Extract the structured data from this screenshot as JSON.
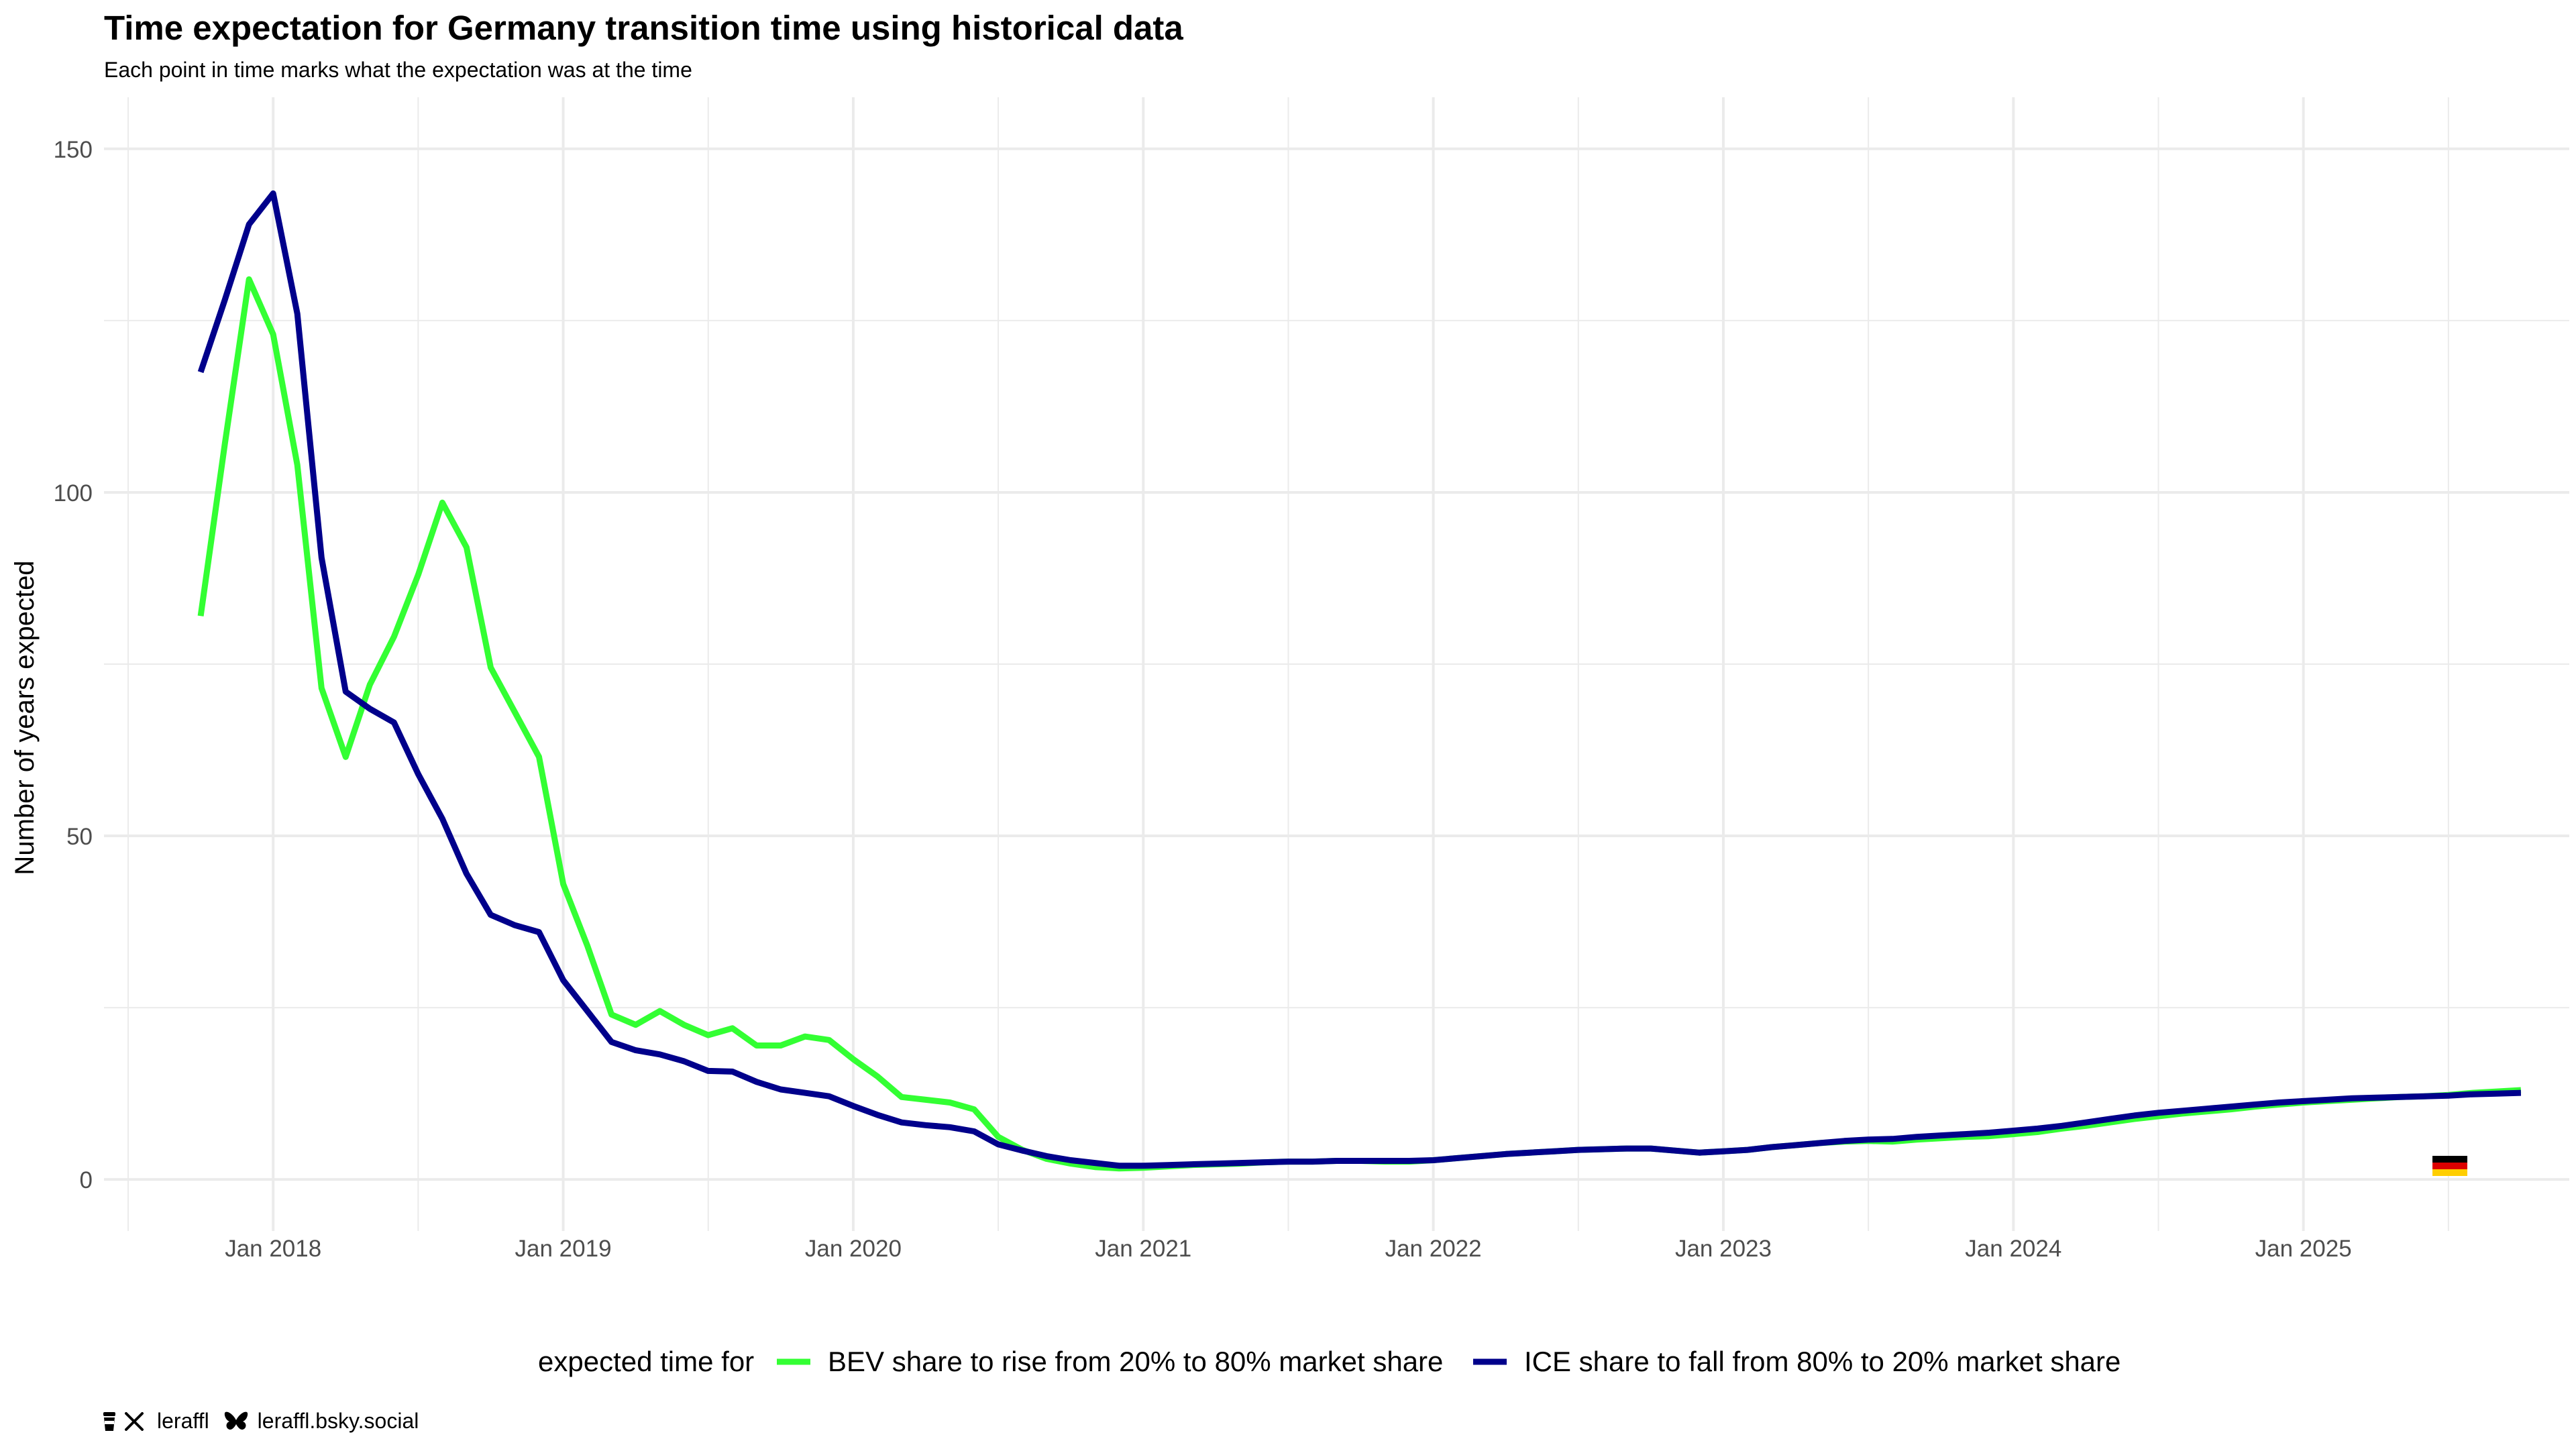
{
  "title": "Time expectation for Germany transition time using historical data",
  "subtitle": "Each point in time marks what the expectation was at the time",
  "credits": {
    "handle": "leraffl",
    "bluesky": "leraffl.bsky.social",
    "icons": [
      "coffee-cup-icon",
      "x-logo-icon",
      "butterfly-icon"
    ]
  },
  "chart_data": {
    "type": "line",
    "ylabel": "Number of years expected",
    "xlabel": "",
    "ylim": [
      -7.5,
      157.5
    ],
    "yticks": [
      0,
      50,
      100,
      150
    ],
    "xlim": [
      "2017-06-01",
      "2025-12-01"
    ],
    "xticks": [
      "Jan 2018",
      "Jan 2019",
      "Jan 2020",
      "Jan 2021",
      "Jan 2022",
      "Jan 2023",
      "Jan 2024",
      "Jan 2025"
    ],
    "grid": true,
    "legend_title": "expected time for",
    "legend_position": "bottom",
    "flag_icon": "germany-flag-icon",
    "x_start": "2017-10",
    "series": [
      {
        "name": "BEV share to rise from 20% to 80% market share",
        "color": "#33ff33",
        "values": [
          82,
          107,
          131,
          123,
          104,
          71.5,
          61.5,
          72,
          79,
          88,
          98.5,
          92,
          74.5,
          68,
          61.5,
          43,
          34,
          24,
          22.5,
          24.5,
          22.5,
          21,
          22,
          19.5,
          19.5,
          20.8,
          20.3,
          17.5,
          15,
          12,
          11.6,
          11.2,
          10.2,
          6.2,
          4.3,
          3,
          2.3,
          1.8,
          1.6,
          1.7,
          1.9,
          2.1,
          2.2,
          2.3,
          2.5,
          2.6,
          2.6,
          2.7,
          2.7,
          2.6,
          2.6,
          2.8,
          3.1,
          3.4,
          3.7,
          3.9,
          4.1,
          4.3,
          4.4,
          4.5,
          4.5,
          4.2,
          3.9,
          4.1,
          4.3,
          4.7,
          5,
          5.3,
          5.5,
          5.6,
          5.5,
          5.8,
          6,
          6.2,
          6.3,
          6.6,
          6.9,
          7.4,
          7.8,
          8.3,
          8.8,
          9.2,
          9.6,
          9.9,
          10.2,
          10.6,
          10.9,
          11.2,
          11.4,
          11.6,
          11.8,
          12,
          12.1,
          12.3,
          12.6,
          12.8,
          13
        ]
      },
      {
        "name": "ICE share to fall from 80% to 20% market share",
        "color": "#00008b",
        "values": [
          117.5,
          128,
          139,
          143.5,
          126,
          90.5,
          71,
          68.5,
          66.5,
          59,
          52.5,
          44.5,
          38.5,
          37,
          36,
          29,
          24.5,
          20,
          18.8,
          18.2,
          17.2,
          15.8,
          15.7,
          14.2,
          13.1,
          12.6,
          12.1,
          10.7,
          9.4,
          8.3,
          7.9,
          7.6,
          7,
          5.1,
          4.2,
          3.4,
          2.8,
          2.4,
          2,
          2,
          2.1,
          2.2,
          2.3,
          2.4,
          2.5,
          2.6,
          2.6,
          2.7,
          2.7,
          2.7,
          2.7,
          2.8,
          3.1,
          3.4,
          3.7,
          3.9,
          4.1,
          4.3,
          4.4,
          4.5,
          4.5,
          4.2,
          3.9,
          4.1,
          4.3,
          4.7,
          5,
          5.3,
          5.6,
          5.8,
          5.9,
          6.2,
          6.4,
          6.6,
          6.8,
          7.1,
          7.4,
          7.8,
          8.3,
          8.8,
          9.3,
          9.7,
          10,
          10.3,
          10.6,
          10.9,
          11.2,
          11.4,
          11.6,
          11.8,
          11.9,
          12,
          12.1,
          12.2,
          12.4,
          12.5,
          12.6
        ]
      }
    ]
  }
}
